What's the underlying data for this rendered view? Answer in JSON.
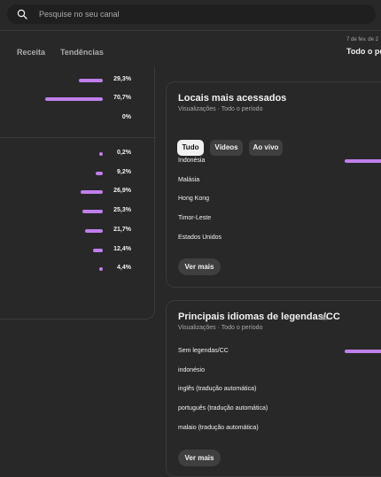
{
  "search": {
    "placeholder": "Pesquise no seu canal"
  },
  "tabs": [
    {
      "label": "Receita"
    },
    {
      "label": "Tendências"
    }
  ],
  "header": {
    "date_range": "7 de fev. de 2",
    "period": "Todo o per"
  },
  "left_panel": {
    "group1": [
      {
        "value": "29,3%",
        "fraction": 0.293
      },
      {
        "value": "70,7%",
        "fraction": 0.707
      },
      {
        "value": "0%",
        "fraction": 0.0
      }
    ],
    "group2": [
      {
        "value": "0,2%",
        "fraction": 0.002
      },
      {
        "value": "9,2%",
        "fraction": 0.092
      },
      {
        "value": "26,9%",
        "fraction": 0.269
      },
      {
        "value": "25,3%",
        "fraction": 0.253
      },
      {
        "value": "21,7%",
        "fraction": 0.217
      },
      {
        "value": "12,4%",
        "fraction": 0.124
      },
      {
        "value": "4,4%",
        "fraction": 0.044
      }
    ]
  },
  "locations_card": {
    "title": "Locais mais acessados",
    "subtitle": "Visualizações · Todo o período",
    "filters": [
      {
        "label": "Tudo",
        "active": true
      },
      {
        "label": "Vídeos",
        "active": false
      },
      {
        "label": "Ao vivo",
        "active": false
      }
    ],
    "rows": [
      {
        "label": "Indonésia"
      },
      {
        "label": "Malásia"
      },
      {
        "label": "Hong Kong"
      },
      {
        "label": "Timor-Leste"
      },
      {
        "label": "Estados Unidos"
      }
    ],
    "more_label": "Ver mais"
  },
  "subtitles_card": {
    "title": "Principais idiomas de legendas/CC",
    "subtitle": "Visualizações · Todo o período",
    "rows": [
      {
        "label": "Sem legendas/CC"
      },
      {
        "label": "indonésio"
      },
      {
        "label": "inglês (tradução automática)"
      },
      {
        "label": "português (tradução automática)"
      },
      {
        "label": "malaio (tradução automática)"
      }
    ],
    "more_label": "Ver mais"
  },
  "colors": {
    "accent": "#c07fec",
    "background": "#282828"
  },
  "icons": {
    "search": "search-icon",
    "warning": "warning-icon"
  }
}
